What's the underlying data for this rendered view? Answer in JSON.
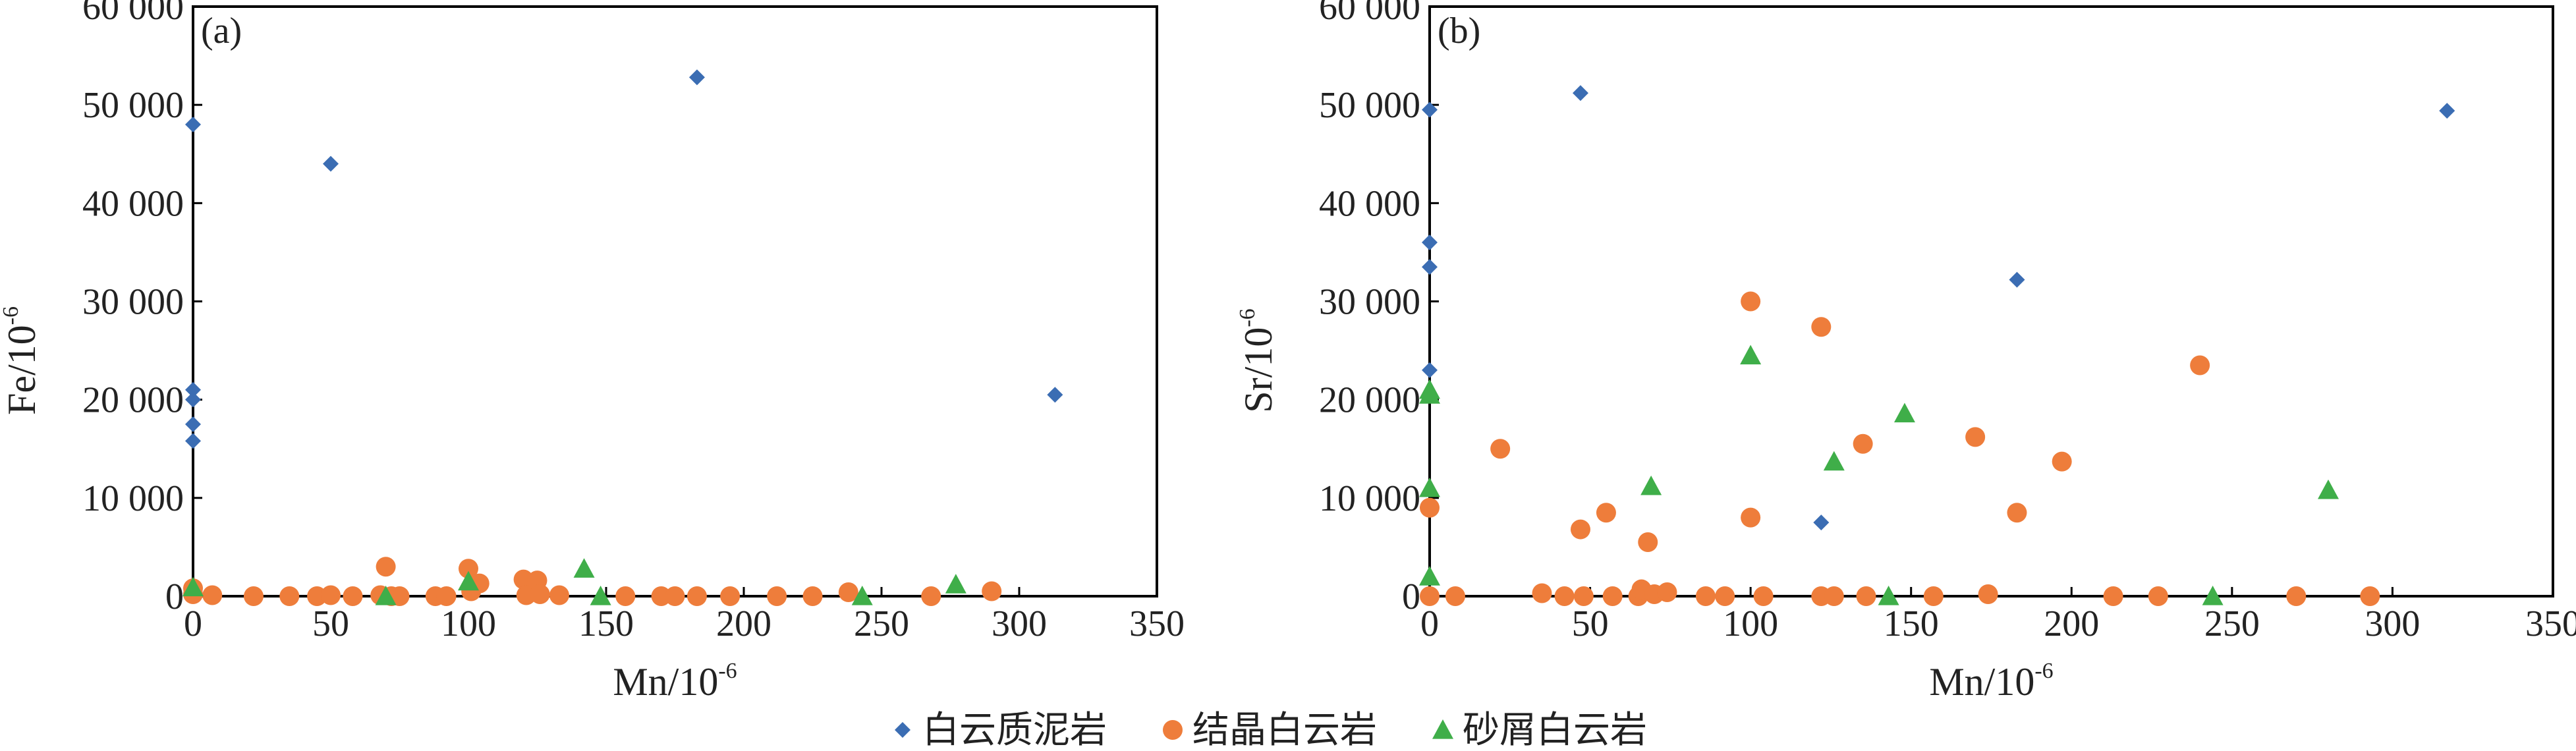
{
  "colors": {
    "series_diamond": "#3b6db3",
    "series_circle": "#ee7d3b",
    "series_triangle": "#3fae49",
    "axis": "#000000"
  },
  "chart_data": [
    {
      "type": "scatter",
      "panel_label": "(a)",
      "xlabel": "Mn/10",
      "xlabel_sup": "-6",
      "ylabel": "Fe/10",
      "ylabel_sup": "-6",
      "xlim": [
        0,
        350
      ],
      "ylim": [
        0,
        60000
      ],
      "xticks": [
        0,
        50,
        100,
        150,
        200,
        250,
        300,
        350
      ],
      "xtick_labels": [
        "0",
        "50",
        "100",
        "150",
        "200",
        "250",
        "300",
        "350"
      ],
      "yticks": [
        0,
        10000,
        20000,
        30000,
        40000,
        50000,
        60000
      ],
      "ytick_labels": [
        "0",
        "10 000",
        "20 000",
        "30 000",
        "40 000",
        "50 000",
        "60 000"
      ],
      "grid": false,
      "series": [
        {
          "name": "白云质泥岩",
          "marker": "diamond",
          "x": [
            0,
            0,
            0,
            0,
            0,
            50,
            183,
            313
          ],
          "y": [
            48000,
            21000,
            20000,
            17500,
            15800,
            44000,
            52800,
            20500
          ]
        },
        {
          "name": "结晶白云岩",
          "marker": "circle",
          "x": [
            0,
            0,
            7,
            22,
            35,
            45,
            50,
            58,
            68,
            70,
            72,
            75,
            88,
            92,
            100,
            101,
            104,
            120,
            121,
            125,
            126,
            133,
            157,
            170,
            175,
            183,
            195,
            212,
            225,
            238,
            268,
            290
          ],
          "y": [
            800,
            200,
            100,
            0,
            0,
            0,
            100,
            0,
            100,
            3000,
            0,
            0,
            0,
            0,
            2800,
            500,
            1300,
            1700,
            100,
            1600,
            200,
            100,
            0,
            0,
            0,
            0,
            0,
            0,
            0,
            400,
            0,
            500
          ],
          "note": ""
        },
        {
          "name": "砂屑白云岩",
          "marker": "triangle",
          "x": [
            0,
            70,
            100,
            142,
            148,
            243,
            277
          ],
          "y": [
            900,
            0,
            1500,
            2800,
            0,
            0,
            1200
          ]
        }
      ]
    },
    {
      "type": "scatter",
      "panel_label": "(b)",
      "xlabel": "Mn/10",
      "xlabel_sup": "-6",
      "ylabel": "Sr/10",
      "ylabel_sup": "-6",
      "xlim": [
        0,
        350
      ],
      "ylim": [
        0,
        60000
      ],
      "xticks": [
        0,
        50,
        100,
        150,
        200,
        250,
        300,
        350
      ],
      "xtick_labels": [
        "0",
        "50",
        "100",
        "150",
        "200",
        "250",
        "300",
        "350"
      ],
      "yticks": [
        0,
        10000,
        20000,
        30000,
        40000,
        50000,
        60000
      ],
      "ytick_labels": [
        "0",
        "10 000",
        "20 000",
        "30 000",
        "40 000",
        "50 000",
        "60 000"
      ],
      "grid": false,
      "series": [
        {
          "name": "白云质泥岩",
          "marker": "diamond",
          "x": [
            0,
            0,
            0,
            0,
            47,
            122,
            183,
            317
          ],
          "y": [
            49500,
            36000,
            33500,
            23000,
            51200,
            7500,
            32200,
            49400
          ]
        },
        {
          "name": "结晶白云岩",
          "marker": "circle",
          "x": [
            0,
            0,
            8,
            22,
            35,
            42,
            47,
            48,
            55,
            57,
            65,
            66,
            68,
            70,
            74,
            86,
            92,
            100,
            100,
            104,
            122,
            122,
            126,
            135,
            136,
            157,
            170,
            174,
            183,
            197,
            213,
            227,
            240,
            270,
            293
          ],
          "y": [
            9000,
            0,
            0,
            15000,
            300,
            0,
            6800,
            0,
            8500,
            0,
            0,
            700,
            5500,
            200,
            400,
            0,
            0,
            30000,
            8000,
            0,
            27400,
            0,
            0,
            15500,
            0,
            0,
            16200,
            200,
            8500,
            13700,
            0,
            0,
            23500,
            0,
            0
          ]
        },
        {
          "name": "砂屑白云岩",
          "marker": "triangle",
          "x": [
            0,
            0,
            0,
            0,
            69,
            100,
            126,
            143,
            148,
            244,
            280
          ],
          "y": [
            21000,
            20500,
            11000,
            2000,
            11200,
            24500,
            13700,
            0,
            18600,
            0,
            10800
          ]
        }
      ]
    }
  ],
  "legend": {
    "placement": "bottom-center",
    "items": [
      {
        "label": "白云质泥岩",
        "marker": "diamond"
      },
      {
        "label": "结晶白云岩",
        "marker": "circle"
      },
      {
        "label": "砂屑白云岩",
        "marker": "triangle"
      }
    ]
  }
}
